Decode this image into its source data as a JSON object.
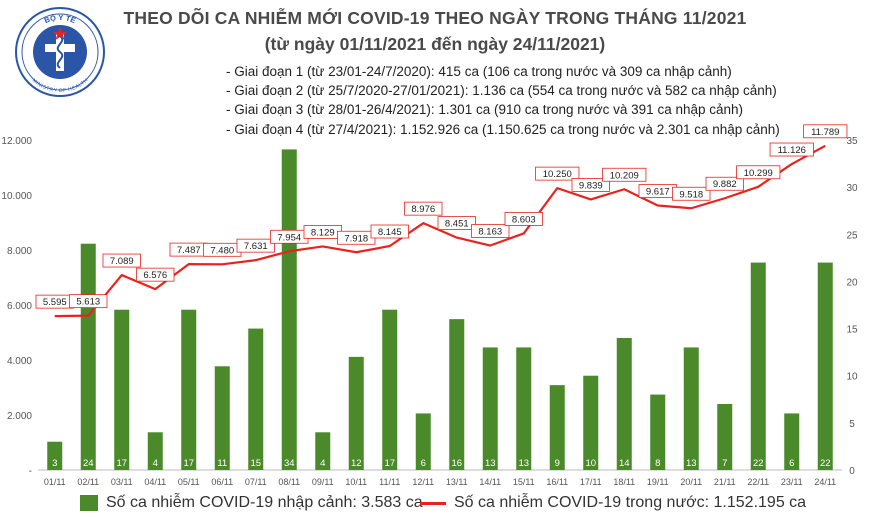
{
  "header": {
    "title": "THEO DÕI CA NHIỄM MỚI COVID-19 THEO NGÀY TRONG THÁNG 11/2021",
    "subtitle": "(từ ngày 01/11/2021 đến ngày 24/11/2021)",
    "logo_text_top": "BỘ Y TẾ",
    "logo_text_bottom": "MINISTRY OF HEALTH"
  },
  "phases": [
    "- Giai đoạn 1 (từ 23/01-24/7/2020): 415 ca (106 ca trong nước và 309 ca nhập cảnh)",
    "- Giai đoạn 2 (từ 25/7/2020-27/01/2021): 1.136 ca (554 ca trong nước và 582 ca nhập cảnh)",
    "- Giai đoạn 3 (từ 28/01-26/4/2021): 1.301 ca (910 ca trong nước và 391 ca nhập cảnh)",
    "- Giai đoạn 4 (từ 27/4/2021): 1.152.926 ca (1.150.625 ca trong nước và 2.301 ca nhập cảnh)"
  ],
  "colors": {
    "bar": "#4a8a2a",
    "line": "#e8231e",
    "axis_text": "#555555",
    "grid": "#dddddd"
  },
  "chart_data": {
    "type": "bar+line",
    "categories": [
      "01/11",
      "02/11",
      "03/11",
      "04/11",
      "05/11",
      "06/11",
      "07/11",
      "08/11",
      "09/11",
      "10/11",
      "11/11",
      "12/11",
      "13/11",
      "14/11",
      "15/11",
      "16/11",
      "17/11",
      "18/11",
      "19/11",
      "20/11",
      "21/11",
      "22/11",
      "23/11",
      "24/11"
    ],
    "series": [
      {
        "name": "Số ca nhiễm COVID-19 nhập cảnh: 3.583 ca",
        "type": "bar",
        "axis": "right",
        "values": [
          3,
          24,
          17,
          4,
          17,
          11,
          15,
          34,
          4,
          12,
          17,
          6,
          16,
          13,
          13,
          9,
          10,
          14,
          8,
          13,
          7,
          22,
          6,
          22
        ],
        "labels": [
          "3",
          "24",
          "17",
          "4",
          "17",
          "11",
          "15",
          "34",
          "4",
          "12",
          "17",
          "6",
          "16",
          "13",
          "13",
          "9",
          "10",
          "14",
          "8",
          "13",
          "7",
          "22",
          "6",
          "22"
        ]
      },
      {
        "name": "Số ca nhiễm COVID-19 trong nước: 1.152.195 ca",
        "type": "line",
        "axis": "left",
        "values": [
          5595,
          5613,
          7089,
          6576,
          7487,
          7480,
          7631,
          7954,
          8129,
          7918,
          8145,
          8976,
          8451,
          8163,
          8603,
          10250,
          9839,
          10209,
          9617,
          9518,
          9882,
          10299,
          11126,
          11789
        ],
        "labels": [
          "5.595",
          "5.613",
          "7.089",
          "6.576",
          "7.487",
          "7.480",
          "7.631",
          "7.954",
          "8.129",
          "7.918",
          "8.145",
          "8.976",
          "8.451",
          "8.163",
          "8.603",
          "10.250",
          "9.839",
          "10.209",
          "9.617",
          "9.518",
          "9.882",
          "10.299",
          "11.126",
          "11.789"
        ]
      }
    ],
    "left_axis": {
      "min": 0,
      "max": 12000,
      "ticks": [
        0,
        2000,
        4000,
        6000,
        8000,
        10000,
        12000
      ],
      "tick_labels": [
        "-",
        "2.000",
        "4.000",
        "6.000",
        "8.000",
        "10.000",
        "12.000"
      ]
    },
    "right_axis": {
      "min": 0,
      "max": 35,
      "ticks": [
        0,
        5,
        10,
        15,
        20,
        25,
        30,
        35
      ],
      "tick_labels": [
        "0",
        "5",
        "10",
        "15",
        "20",
        "25",
        "30",
        "35"
      ]
    },
    "legend_position": "bottom",
    "grid": false
  }
}
